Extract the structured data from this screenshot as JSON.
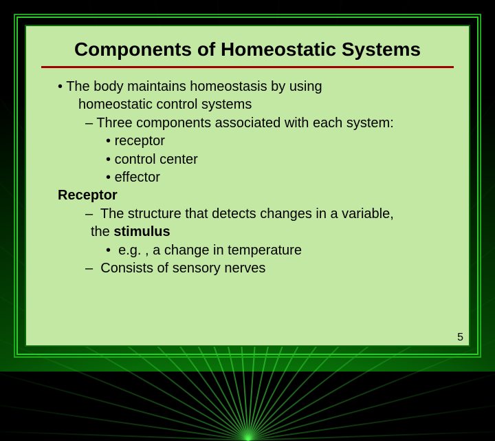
{
  "slide": {
    "background": {
      "ray_color_bright": "#3fff3f",
      "ray_color_dark": "#012501",
      "base_color": "#000000"
    },
    "frame": {
      "outer_border_color": "#1ba81b",
      "mid_border_color": "#2acc2a",
      "panel_bg": "#c3e8a4",
      "panel_border_color": "#0a6a0a",
      "title_underline_color": "#a00000"
    },
    "typography": {
      "title_fontsize": 28,
      "body_fontsize": 20,
      "font_family": "Arial"
    },
    "title": "Components of Homeostatic Systems",
    "bullets": {
      "b1a": "The body maintains homeostasis by using",
      "b1b": "homeostatic control systems",
      "b2": "Three components associated with each system:",
      "b3a": "receptor",
      "b3b": "control center",
      "b3c": "effector",
      "receptor_label": "Receptor",
      "r1a": "The structure that detects changes in a variable,",
      "r1b_pre": "the ",
      "r1b_bold": "stimulus",
      "r2": "e.g. , a change in temperature",
      "r3": "Consists of sensory nerves"
    },
    "page_number": "5"
  }
}
